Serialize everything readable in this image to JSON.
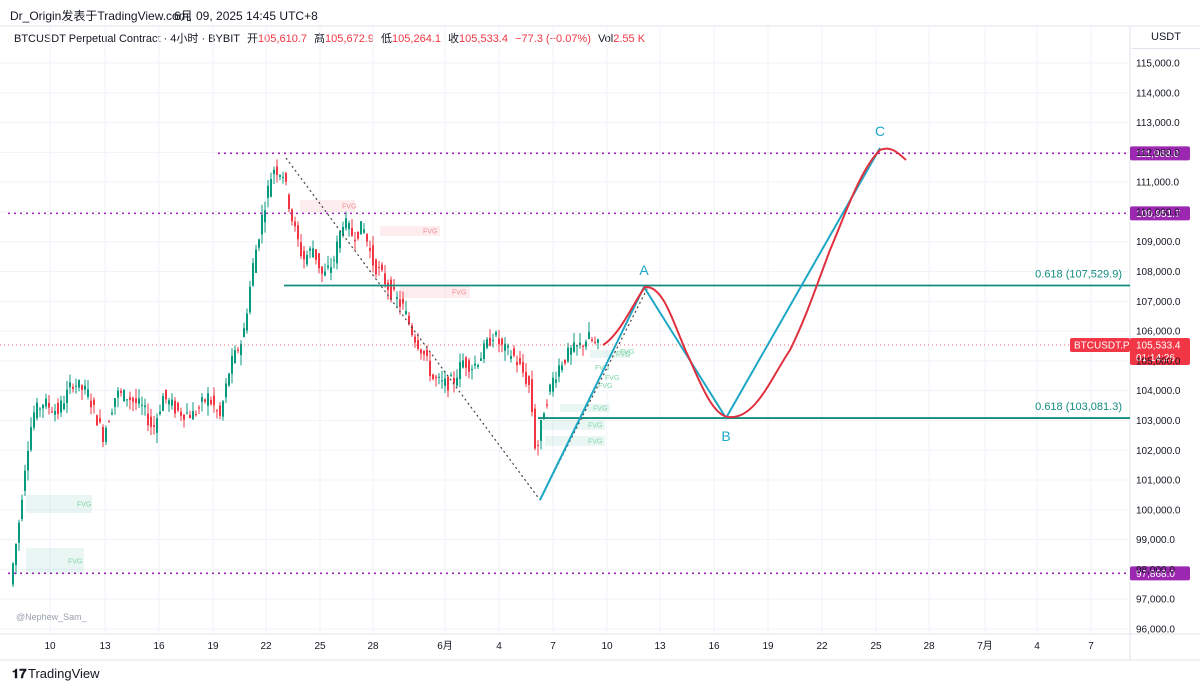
{
  "header": {
    "source": "Dr_Origin发表于TradingView.com,",
    "date": "6月 09, 2025 14:45 UTC+8"
  },
  "legend": {
    "symbol": "BTCUSDT Perpetual Contract · 4小时 · BYBIT",
    "open_label": "开",
    "open": "105,610.7",
    "high_label": "高",
    "high": "105,672.9",
    "low_label": "低",
    "low": "105,264.1",
    "close_label": "收",
    "close": "105,533.4",
    "change": "−77.3 (−0.07%)",
    "vol_label": "Vol",
    "vol": "2.55 K"
  },
  "axis": {
    "currency": "USDT",
    "price_ticks": [
      "115,000.0",
      "114,000.0",
      "113,000.0",
      "112,000.0",
      "111,000.0",
      "110,000.0",
      "109,000.0",
      "108,000.0",
      "107,000.0",
      "106,000.0",
      "105,000.0",
      "104,000.0",
      "103,000.0",
      "102,000.0",
      "101,000.0",
      "100,000.0",
      "99,000.0",
      "98,000.0",
      "97,000.0",
      "96,000.0"
    ],
    "time_ticks": [
      "10",
      "13",
      "16",
      "19",
      "22",
      "25",
      "28",
      "6月",
      "4",
      "7",
      "10",
      "13",
      "16",
      "19",
      "22",
      "25",
      "28",
      "7月",
      "4",
      "7"
    ]
  },
  "price_labels": {
    "level_111968": "111,968.0",
    "level_109951": "109,951.7",
    "level_97868": "97,868.0",
    "current_symbol": "BTCUSDT.P",
    "current_price": "105,533.4",
    "countdown": "01:14:26"
  },
  "annotations": {
    "point_a": "A",
    "point_b": "B",
    "point_c": "C",
    "fib_upper": "0.618 (107,529.9)",
    "fib_lower": "0.618 (103,081.3)",
    "fvg": "FVG",
    "watermark": "@Nephew_Sam_"
  },
  "colors": {
    "up": "#089981",
    "down": "#f23645",
    "level_purple": "#9c27b0",
    "fib_teal": "#138c7f",
    "projection_cyan": "#1ea7c5",
    "projection_red": "#e0303e"
  },
  "footer": {
    "brand": "TradingView"
  }
}
